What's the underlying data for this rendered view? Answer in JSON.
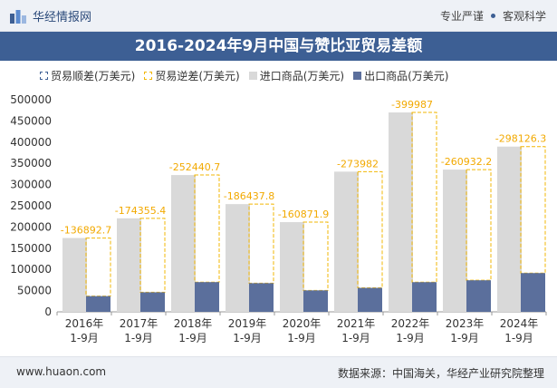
{
  "header": {
    "brand": "华经情报网",
    "tag1": "专业严谨",
    "tag2": "客观科学"
  },
  "title": "2016-2024年9月中国与赞比亚贸易差额",
  "legend": {
    "surplus": "贸易顺差(万美元)",
    "deficit": "贸易逆差(万美元)",
    "import": "进口商品(万美元)",
    "export": "出口商品(万美元)"
  },
  "footer": {
    "url": "www.huaon.com",
    "source": "数据来源：中国海关，华经产业研究院整理"
  },
  "colors": {
    "title_bg": "#3d5f94",
    "import": "#d9d9d9",
    "export": "#5b6f9c",
    "deficit": "#f2b705",
    "label": "#f2a900"
  },
  "chart_data": {
    "type": "bar",
    "categories": [
      [
        "2016年",
        "1-9月"
      ],
      [
        "2017年",
        "1-9月"
      ],
      [
        "2018年",
        "1-9月"
      ],
      [
        "2019年",
        "1-9月"
      ],
      [
        "2020年",
        "1-9月"
      ],
      [
        "2021年",
        "1-9月"
      ],
      [
        "2022年",
        "1-9月"
      ],
      [
        "2023年",
        "1-9月"
      ],
      [
        "2024年",
        "1-9月"
      ]
    ],
    "series": [
      {
        "name": "进口商品(万美元)",
        "values": [
          174000,
          220500,
          322500,
          254000,
          211500,
          330500,
          470000,
          335300,
          389500
        ]
      },
      {
        "name": "出口商品(万美元)",
        "values": [
          37100,
          46100,
          70100,
          67600,
          50600,
          56500,
          70000,
          74400,
          91400
        ]
      },
      {
        "name": "贸易逆差(万美元)",
        "values": [
          -136892.7,
          -174355.4,
          -252440.7,
          -186437.8,
          -160871.9,
          -273982,
          -399987,
          -260932.2,
          -298126.3
        ]
      }
    ],
    "data_labels": [
      "-136892.7",
      "-174355.4",
      "-252440.7",
      "-186437.8",
      "-160871.9",
      "-273982",
      "-399987",
      "-260932.2",
      "-298126.3"
    ],
    "ylim": [
      0,
      500000
    ],
    "yticks": [
      0,
      50000,
      100000,
      150000,
      200000,
      250000,
      300000,
      350000,
      400000,
      450000,
      500000
    ],
    "grid": false,
    "legend_position": "top"
  }
}
